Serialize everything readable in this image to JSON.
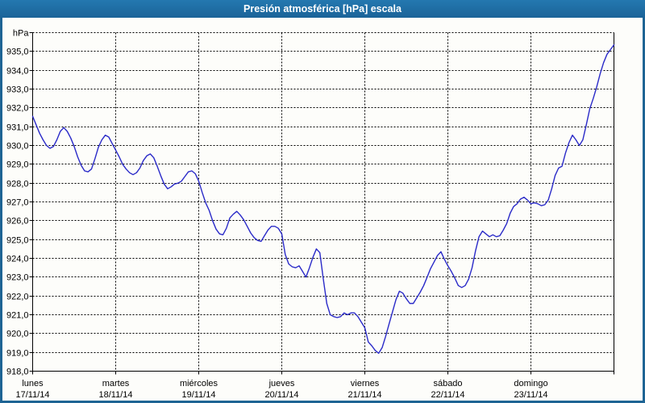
{
  "chart_data": {
    "type": "line",
    "title": "Presión atmosférica [hPa] escala",
    "grid": "dashed-black",
    "legend_position": "none",
    "ylim": [
      918,
      936
    ],
    "y_axis": {
      "unit_label": "hPa",
      "min": 918,
      "max": 936,
      "tick_step": 1.0,
      "tick_labels_top_to_bottom": [
        "935,0",
        "934,0",
        "933,0",
        "932,0",
        "931,0",
        "930,0",
        "929,0",
        "928,0",
        "927,0",
        "926,0",
        "925,0",
        "924,0",
        "923,0",
        "922,0",
        "921,0",
        "920,0",
        "919,0",
        "918,0"
      ]
    },
    "x_axis": {
      "days": [
        {
          "name": "lunes",
          "date": "17/11/14"
        },
        {
          "name": "martes",
          "date": "18/11/14"
        },
        {
          "name": "miércoles",
          "date": "19/11/14"
        },
        {
          "name": "jueves",
          "date": "20/11/14"
        },
        {
          "name": "viernes",
          "date": "21/11/14"
        },
        {
          "name": "sábado",
          "date": "22/11/14"
        },
        {
          "name": "domingo",
          "date": "23/11/14"
        }
      ]
    },
    "series": [
      {
        "name": "Presión atmosférica [hPa]",
        "color": "#2a2ac8",
        "sampling": "hourly, 7 days, values in hPa from Mon 17/11/14 00:00 to Sun 23/11/14 24:00",
        "values": [
          931.55,
          931.1,
          930.65,
          930.3,
          930.0,
          929.85,
          929.95,
          930.3,
          930.75,
          930.95,
          930.75,
          930.4,
          929.95,
          929.4,
          928.95,
          928.65,
          928.6,
          928.75,
          929.3,
          929.9,
          930.3,
          930.55,
          930.45,
          930.1,
          929.75,
          929.4,
          929.0,
          928.75,
          928.55,
          928.45,
          928.55,
          928.8,
          929.2,
          929.45,
          929.55,
          929.35,
          928.9,
          928.4,
          927.95,
          927.7,
          927.8,
          927.95,
          928.0,
          928.1,
          928.35,
          928.6,
          928.65,
          928.5,
          928.1,
          927.5,
          926.95,
          926.55,
          926.0,
          925.55,
          925.3,
          925.25,
          925.6,
          926.15,
          926.35,
          926.5,
          926.3,
          926.05,
          925.7,
          925.35,
          925.1,
          924.95,
          924.9,
          925.2,
          925.5,
          925.7,
          925.7,
          925.6,
          925.3,
          924.2,
          923.7,
          923.55,
          923.5,
          923.6,
          923.3,
          923.0,
          923.5,
          924.05,
          924.5,
          924.3,
          922.9,
          921.6,
          921.0,
          920.9,
          920.85,
          920.9,
          921.1,
          921.0,
          921.1,
          921.1,
          920.9,
          920.6,
          920.3,
          919.55,
          919.35,
          919.1,
          918.95,
          919.25,
          919.85,
          920.5,
          921.15,
          921.8,
          922.25,
          922.15,
          921.85,
          921.6,
          921.6,
          921.9,
          922.2,
          922.55,
          923.0,
          923.45,
          923.8,
          924.15,
          924.35,
          923.95,
          923.6,
          923.3,
          922.95,
          922.55,
          922.45,
          922.55,
          922.9,
          923.5,
          924.4,
          925.15,
          925.45,
          925.3,
          925.15,
          925.25,
          925.15,
          925.2,
          925.5,
          925.85,
          926.4,
          926.75,
          926.9,
          927.15,
          927.25,
          927.1,
          926.9,
          926.95,
          926.9,
          926.8,
          926.85,
          927.1,
          927.7,
          928.4,
          928.8,
          928.9,
          929.6,
          930.15,
          930.55,
          930.3,
          930.0,
          930.3,
          931.1,
          931.95,
          932.5,
          933.1,
          933.8,
          934.4,
          934.85,
          935.1,
          935.35
        ]
      }
    ],
    "colors": {
      "title_bar_bg": "#1d6ca3",
      "title_text": "#ffffff",
      "frame": "#1e6494",
      "plot_bg": "#ffffff",
      "grid": "#000000",
      "line": "#2a2ac8"
    }
  }
}
